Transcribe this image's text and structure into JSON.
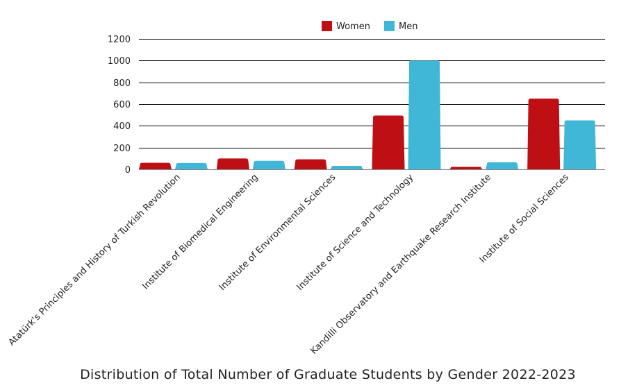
{
  "chart_data": {
    "type": "bar",
    "title": "Distribution of Total Number of Graduate Students by Gender 2022-2023",
    "xlabel": "",
    "ylabel": "",
    "ylim": [
      0,
      1200
    ],
    "yticks": [
      0,
      200,
      400,
      600,
      800,
      1000,
      1200
    ],
    "grid": true,
    "legend_position": "top-center",
    "categories": [
      "Atatürk's Principles and History of Turkish Revolution",
      "Institute of Biomedical Engineering",
      "Institute of Environmental Sciences",
      "Institute of Science and Technology",
      "Kandilli Observatory and Earthquake Research Institute",
      "Institute of Social Sciences"
    ],
    "series": [
      {
        "name": "Women",
        "color": "#BE1014",
        "values": [
          60,
          100,
          92,
          495,
          22,
          650
        ]
      },
      {
        "name": "Men",
        "color": "#41B7D7",
        "values": [
          58,
          78,
          32,
          1000,
          65,
          450
        ]
      }
    ]
  }
}
